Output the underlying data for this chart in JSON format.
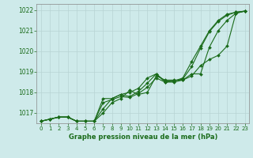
{
  "x": [
    0,
    1,
    2,
    3,
    4,
    5,
    6,
    7,
    8,
    9,
    10,
    11,
    12,
    13,
    14,
    15,
    16,
    17,
    18,
    19,
    20,
    21,
    22,
    23
  ],
  "line1": [
    1016.6,
    1016.7,
    1016.8,
    1016.8,
    1016.6,
    1016.6,
    1016.6,
    1017.0,
    1017.5,
    1017.7,
    1018.1,
    1017.9,
    1018.0,
    1018.8,
    1018.6,
    1018.6,
    1018.6,
    1018.9,
    1018.9,
    1020.2,
    1021.0,
    1021.5,
    1021.85,
    1021.95
  ],
  "line2": [
    1016.6,
    1016.7,
    1016.8,
    1016.8,
    1016.6,
    1016.6,
    1016.6,
    1017.2,
    1017.7,
    1017.9,
    1018.0,
    1018.2,
    1018.7,
    1018.9,
    1018.5,
    1018.5,
    1018.6,
    1018.8,
    1019.3,
    1019.6,
    1019.8,
    1020.25,
    1021.85,
    1021.95
  ],
  "line3": [
    1016.6,
    1016.7,
    1016.8,
    1016.8,
    1016.6,
    1016.6,
    1016.6,
    1017.5,
    1017.65,
    1017.8,
    1017.75,
    1017.95,
    1018.25,
    1018.7,
    1018.5,
    1018.55,
    1018.65,
    1019.25,
    1020.15,
    1020.95,
    1021.45,
    1021.75,
    1021.9,
    1021.95
  ],
  "line4": [
    1016.6,
    1016.7,
    1016.8,
    1016.8,
    1016.6,
    1016.6,
    1016.6,
    1017.7,
    1017.7,
    1017.9,
    1017.8,
    1018.05,
    1018.45,
    1018.9,
    1018.55,
    1018.55,
    1018.7,
    1019.5,
    1020.25,
    1021.0,
    1021.5,
    1021.8,
    1021.9,
    1021.95
  ],
  "ylim": [
    1016.5,
    1022.3
  ],
  "yticks": [
    1017,
    1018,
    1019,
    1020,
    1021,
    1022
  ],
  "xticks": [
    0,
    1,
    2,
    3,
    4,
    5,
    6,
    7,
    8,
    9,
    10,
    11,
    12,
    13,
    14,
    15,
    16,
    17,
    18,
    19,
    20,
    21,
    22,
    23
  ],
  "xlabel": "Graphe pression niveau de la mer (hPa)",
  "line_color": "#1a6b1a",
  "bg_color": "#ceeaea",
  "grid_color": "#b8d4d4",
  "axis_color": "#888888",
  "tick_label_color": "#1a6b1a",
  "xlabel_color": "#1a6b1a",
  "marker": "D",
  "marker_size": 2.0,
  "linewidth": 0.8
}
